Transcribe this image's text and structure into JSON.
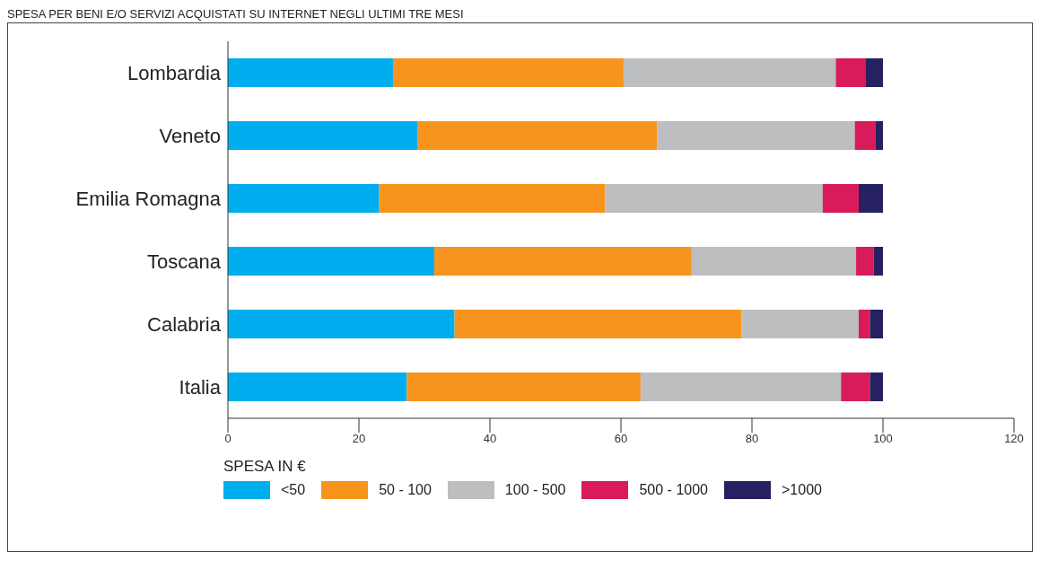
{
  "chart_data": {
    "type": "bar",
    "orientation": "horizontal",
    "stacked": true,
    "title": "SPESA PER BENI E/O SERVIZI ACQUISTATI SU INTERNET NEGLI ULTIMI TRE MESI",
    "categories": [
      "Lombardia",
      "Veneto",
      "Emilia Romagna",
      "Toscana",
      "Calabria",
      "Italia"
    ],
    "series": [
      {
        "name": "<50",
        "color": "#00aeef",
        "values": [
          25.2,
          29.0,
          23.1,
          31.5,
          34.6,
          27.3
        ]
      },
      {
        "name": "50 - 100",
        "color": "#f7941d",
        "values": [
          35.2,
          36.5,
          34.5,
          39.3,
          43.8,
          35.7
        ]
      },
      {
        "name": "100 - 500",
        "color": "#bcbec0",
        "values": [
          32.4,
          30.2,
          33.2,
          25.1,
          17.9,
          30.6
        ]
      },
      {
        "name": "500 - 1000",
        "color": "#d91a5b",
        "values": [
          4.5,
          3.2,
          5.5,
          2.7,
          1.7,
          4.4
        ]
      },
      {
        "name": ">1000",
        "color": "#262262",
        "values": [
          2.7,
          1.1,
          3.7,
          1.4,
          2.0,
          2.0
        ]
      }
    ],
    "xlim": [
      0,
      120
    ],
    "xticks": [
      0,
      20,
      40,
      60,
      80,
      100,
      120
    ],
    "legend": "bottom left",
    "legend_title": "SPESA IN €",
    "grid": false
  }
}
